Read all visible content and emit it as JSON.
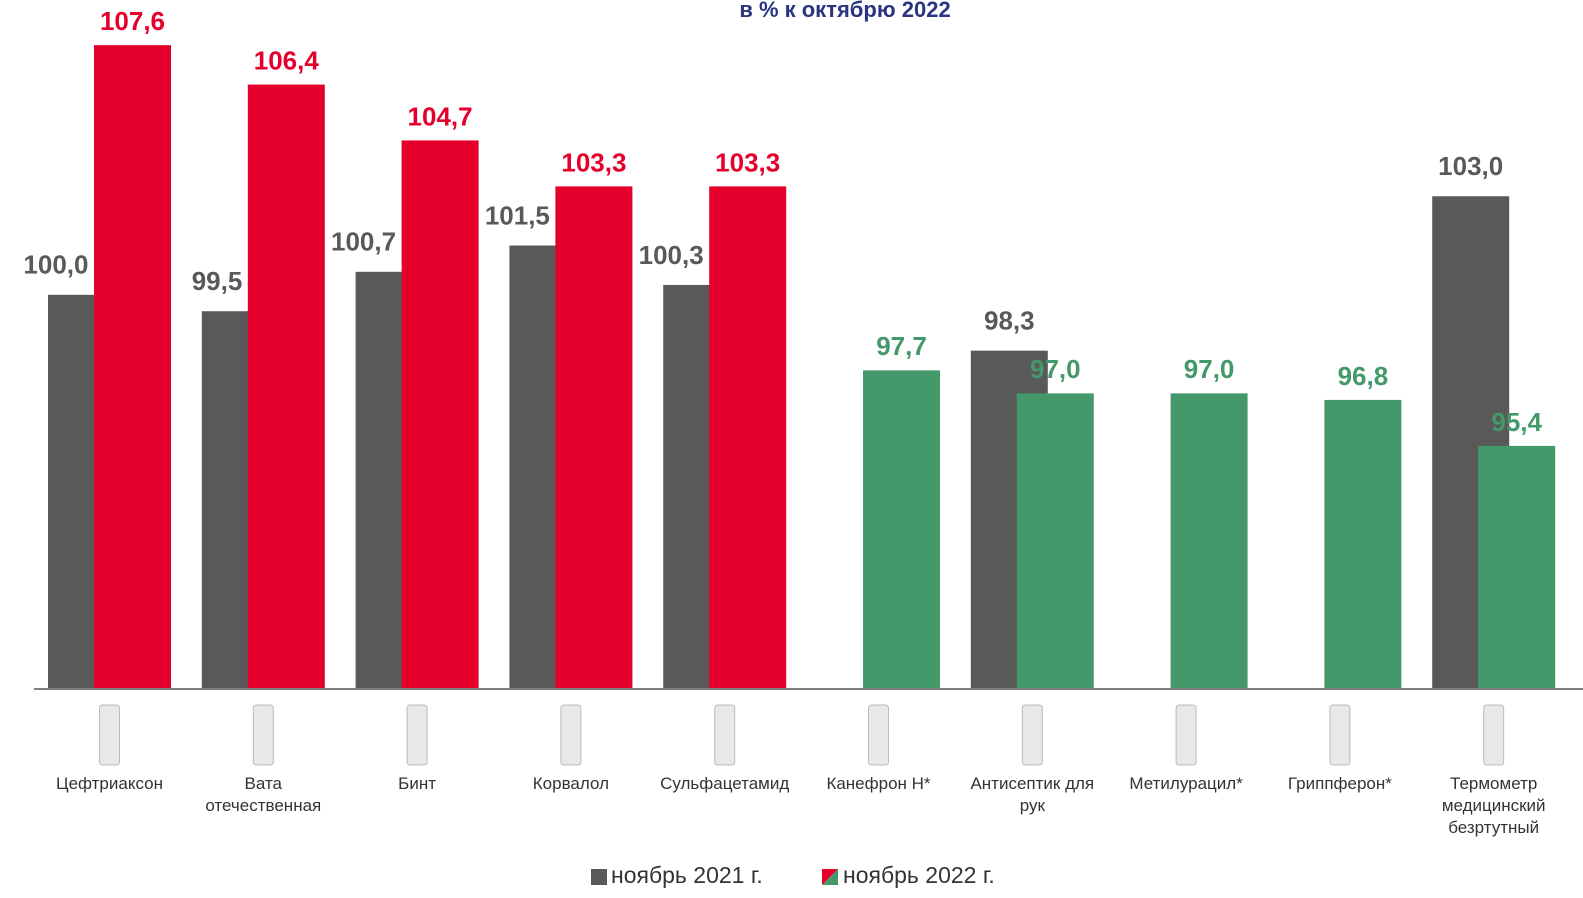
{
  "chart_data": {
    "type": "bar",
    "title": "в % к октябрю 2022",
    "categories": [
      "Цефтриаксон",
      "Вата отечественная",
      "Бинт",
      "Корвалол",
      "Сульфацетамид",
      "Канефрон Н*",
      "Антисептик для рук",
      "Метилурацил*",
      "Гриппферон*",
      "Термометр медицинский безртутный"
    ],
    "series": [
      {
        "name": "ноябрь 2021 г.",
        "color": "#595959",
        "values": [
          100.0,
          99.5,
          100.7,
          101.5,
          100.3,
          null,
          98.3,
          null,
          null,
          103.0
        ],
        "value_labels": [
          "100,0",
          "99,5",
          "100,7",
          "101,5",
          "100,3",
          null,
          "98,3",
          null,
          null,
          "103,0"
        ]
      },
      {
        "name": "ноябрь 2022 г.",
        "color": "#e4002b",
        "colors": [
          "#e4002b",
          "#e4002b",
          "#e4002b",
          "#e4002b",
          "#e4002b",
          "#43996a",
          "#43996a",
          "#43996a",
          "#43996a",
          "#43996a"
        ],
        "values": [
          107.6,
          106.4,
          104.7,
          103.3,
          103.3,
          97.7,
          97.0,
          97.0,
          96.8,
          95.4
        ],
        "value_labels": [
          "107,6",
          "106,4",
          "104,7",
          "103,3",
          "103,3",
          "97,7",
          "97,0",
          "97,0",
          "96,8",
          "95,4"
        ]
      }
    ],
    "ylim": [
      88,
      108
    ],
    "legend": "bottom"
  }
}
